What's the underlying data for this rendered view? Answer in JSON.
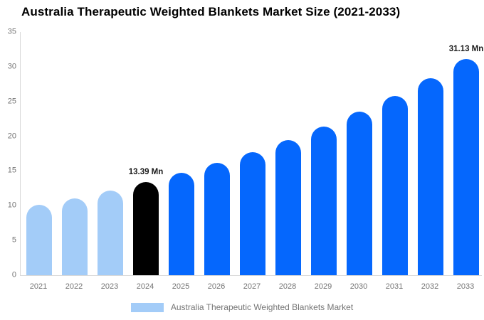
{
  "title": "Australia Therapeutic Weighted Blankets Market Size (2021-2033)",
  "colors": {
    "bar_light": "#a3ccf8",
    "bar_primary": "#0567fd",
    "bar_highlight": "#000000",
    "axis_line": "#d9d9d9",
    "tick_text": "#757575",
    "annotation_text": "#1a1a1a",
    "title_text": "#000000",
    "background": "#ffffff"
  },
  "chart_data": {
    "type": "bar",
    "title": "Australia Therapeutic Weighted Blankets Market Size (2021-2033)",
    "xlabel": "",
    "ylabel": "",
    "categories": [
      "2021",
      "2022",
      "2023",
      "2024",
      "2025",
      "2026",
      "2027",
      "2028",
      "2029",
      "2030",
      "2031",
      "2032",
      "2033"
    ],
    "values": [
      10.11,
      11.1,
      12.19,
      13.39,
      14.71,
      16.15,
      17.74,
      19.48,
      21.4,
      23.5,
      25.81,
      28.34,
      31.13
    ],
    "bar_styles": [
      "light",
      "light",
      "light",
      "highlight",
      "primary",
      "primary",
      "primary",
      "primary",
      "primary",
      "primary",
      "primary",
      "primary",
      "primary"
    ],
    "annotations": [
      {
        "category": "2024",
        "label": "13.39 Mn"
      },
      {
        "category": "2033",
        "label": "31.13 Mn"
      }
    ],
    "y_ticks": [
      0,
      5,
      10,
      15,
      20,
      25,
      30,
      35
    ],
    "ylim": [
      0,
      35
    ],
    "grid": false,
    "legend": {
      "position": "bottom",
      "entries": [
        {
          "label": "Australia Therapeutic Weighted Blankets Market",
          "color": "light"
        }
      ]
    }
  }
}
